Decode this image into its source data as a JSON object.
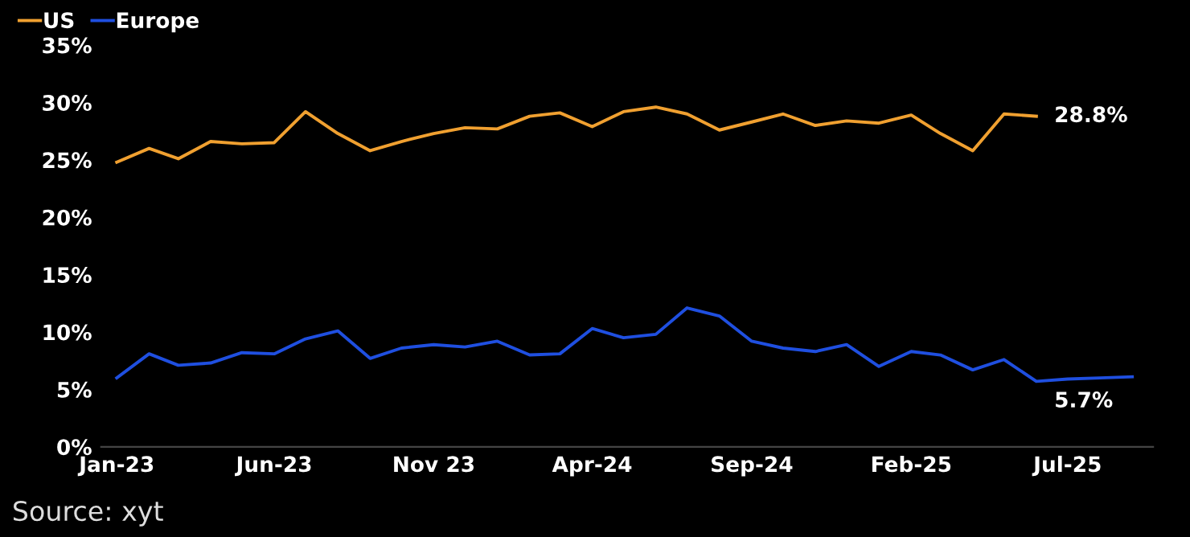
{
  "chart_data": {
    "type": "line",
    "x": [
      "2023-01",
      "2023-02",
      "2023-03",
      "2023-04",
      "2023-05",
      "2023-06",
      "2023-07",
      "2023-08",
      "2023-09",
      "2023-10",
      "2023-11",
      "2023-12",
      "2024-01",
      "2024-02",
      "2024-03",
      "2024-04",
      "2024-05",
      "2024-06",
      "2024-07",
      "2024-08",
      "2024-09",
      "2024-10",
      "2024-11",
      "2024-12",
      "2025-01",
      "2025-02",
      "2025-03",
      "2025-04",
      "2025-05",
      "2025-06",
      "2025-07",
      "2025-08",
      "2025-09"
    ],
    "series": [
      {
        "name": "US",
        "color": "#f0a030",
        "values": [
          24.8,
          26.0,
          25.1,
          26.6,
          26.4,
          26.5,
          29.2,
          27.3,
          25.8,
          26.6,
          27.3,
          27.8,
          27.7,
          28.8,
          29.1,
          27.9,
          29.2,
          29.6,
          29.0,
          27.6,
          28.3,
          29.0,
          28.0,
          28.4,
          28.2,
          28.9,
          27.3,
          25.8,
          29.0,
          28.8,
          null,
          null,
          null
        ]
      },
      {
        "name": "Europe",
        "color": "#1f4fe0",
        "values": [
          6.0,
          8.1,
          7.1,
          7.3,
          8.2,
          8.1,
          9.4,
          10.1,
          7.7,
          8.6,
          8.9,
          8.7,
          9.2,
          8.0,
          8.1,
          10.3,
          9.5,
          9.8,
          12.1,
          11.4,
          9.2,
          8.6,
          8.3,
          8.9,
          7.0,
          8.3,
          8.0,
          6.7,
          7.6,
          5.7,
          5.9,
          6.0,
          6.1
        ]
      }
    ],
    "xlim": [
      "2022-12-17",
      "2025-09-21"
    ],
    "xticks": [
      {
        "value": "2023-01",
        "label": "Jan-23"
      },
      {
        "value": "2023-06",
        "label": "Jun-23"
      },
      {
        "value": "2023-11",
        "label": "Nov 23"
      },
      {
        "value": "2024-04",
        "label": "Apr-24"
      },
      {
        "value": "2024-09",
        "label": "Sep-24"
      },
      {
        "value": "2025-02",
        "label": "Feb-25"
      },
      {
        "value": "2025-07",
        "label": "Jul-25"
      }
    ],
    "ylim": [
      0,
      35
    ],
    "yticks": [
      {
        "value": 0,
        "label": "0%"
      },
      {
        "value": 5,
        "label": "5%"
      },
      {
        "value": 10,
        "label": "10%"
      },
      {
        "value": 15,
        "label": "15%"
      },
      {
        "value": 20,
        "label": "20%"
      },
      {
        "value": 25,
        "label": "25%"
      },
      {
        "value": 30,
        "label": "30%"
      },
      {
        "value": 35,
        "label": "35%"
      }
    ],
    "annotations": [
      {
        "text": "28.8%",
        "x": "2025-06",
        "y": 28.8
      },
      {
        "text": "5.7%",
        "x": "2025-06",
        "y": 5.7
      },
      "Source: xyt"
    ],
    "legend": "top left",
    "grid": false,
    "marker": "none",
    "line_style": "solid"
  }
}
